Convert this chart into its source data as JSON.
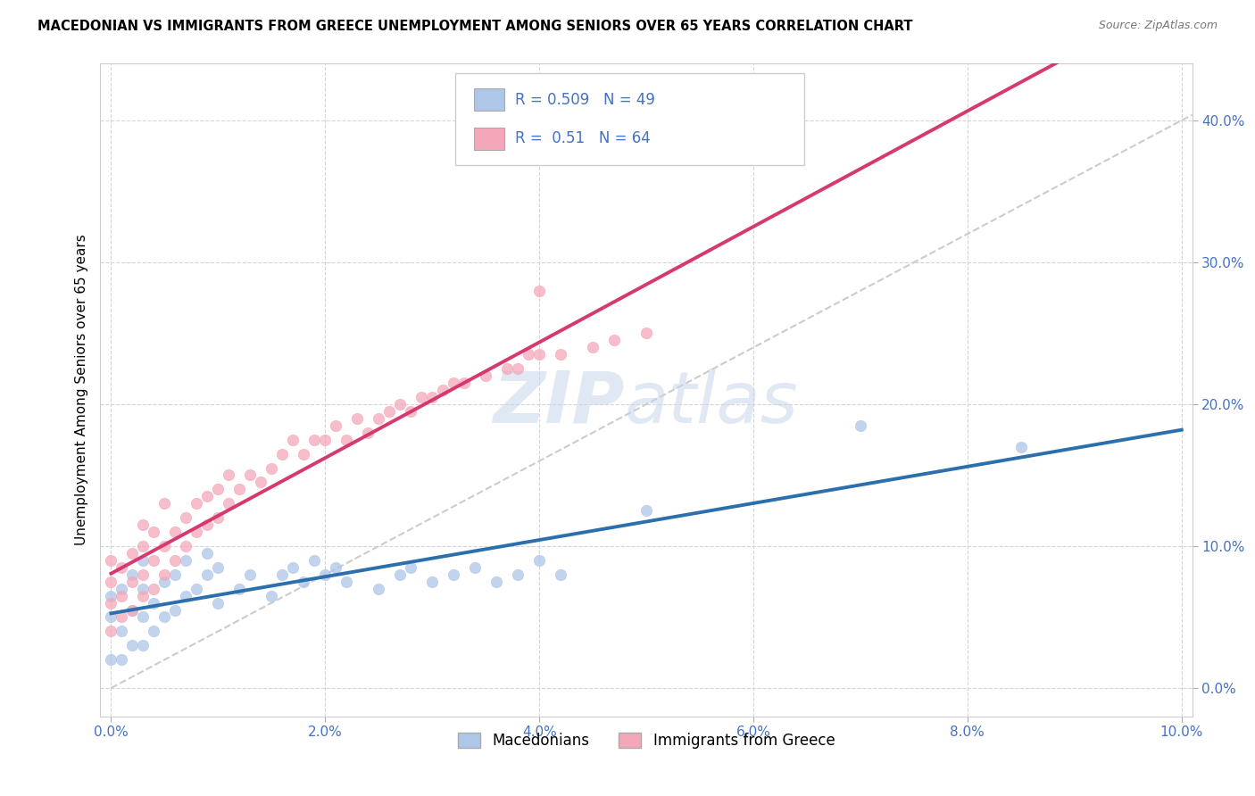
{
  "title": "MACEDONIAN VS IMMIGRANTS FROM GREECE UNEMPLOYMENT AMONG SENIORS OVER 65 YEARS CORRELATION CHART",
  "source": "Source: ZipAtlas.com",
  "ylabel": "Unemployment Among Seniors over 65 years",
  "xlim": [
    -0.001,
    0.101
  ],
  "ylim": [
    -0.02,
    0.44
  ],
  "x_ticks": [
    0.0,
    0.02,
    0.04,
    0.06,
    0.08,
    0.1
  ],
  "y_ticks": [
    0.0,
    0.1,
    0.2,
    0.3,
    0.4
  ],
  "macedonian_R": 0.509,
  "macedonian_N": 49,
  "greece_R": 0.51,
  "greece_N": 64,
  "blue_dot_color": "#aec6e8",
  "pink_dot_color": "#f4a7b9",
  "blue_line_color": "#2c6fad",
  "pink_line_color": "#d63870",
  "ref_line_color": "#cccccc",
  "watermark_color": "#c8d6ea",
  "mac_x": [
    0.0,
    0.0,
    0.0,
    0.001,
    0.001,
    0.001,
    0.002,
    0.002,
    0.002,
    0.003,
    0.003,
    0.003,
    0.003,
    0.004,
    0.004,
    0.005,
    0.005,
    0.006,
    0.006,
    0.007,
    0.007,
    0.008,
    0.009,
    0.009,
    0.01,
    0.01,
    0.012,
    0.013,
    0.015,
    0.016,
    0.017,
    0.018,
    0.019,
    0.02,
    0.021,
    0.022,
    0.025,
    0.027,
    0.028,
    0.03,
    0.032,
    0.034,
    0.036,
    0.038,
    0.04,
    0.042,
    0.05,
    0.07,
    0.085
  ],
  "mac_y": [
    0.02,
    0.05,
    0.065,
    0.02,
    0.04,
    0.07,
    0.03,
    0.055,
    0.08,
    0.03,
    0.05,
    0.07,
    0.09,
    0.04,
    0.06,
    0.05,
    0.075,
    0.055,
    0.08,
    0.065,
    0.09,
    0.07,
    0.08,
    0.095,
    0.06,
    0.085,
    0.07,
    0.08,
    0.065,
    0.08,
    0.085,
    0.075,
    0.09,
    0.08,
    0.085,
    0.075,
    0.07,
    0.08,
    0.085,
    0.075,
    0.08,
    0.085,
    0.075,
    0.08,
    0.09,
    0.08,
    0.125,
    0.185,
    0.17
  ],
  "gr_x": [
    0.0,
    0.0,
    0.0,
    0.0,
    0.001,
    0.001,
    0.001,
    0.002,
    0.002,
    0.002,
    0.003,
    0.003,
    0.003,
    0.003,
    0.004,
    0.004,
    0.004,
    0.005,
    0.005,
    0.005,
    0.006,
    0.006,
    0.007,
    0.007,
    0.008,
    0.008,
    0.009,
    0.009,
    0.01,
    0.01,
    0.011,
    0.011,
    0.012,
    0.013,
    0.014,
    0.015,
    0.016,
    0.017,
    0.018,
    0.019,
    0.02,
    0.021,
    0.022,
    0.023,
    0.024,
    0.025,
    0.026,
    0.027,
    0.028,
    0.029,
    0.03,
    0.031,
    0.032,
    0.033,
    0.035,
    0.037,
    0.038,
    0.039,
    0.04,
    0.042,
    0.045,
    0.047,
    0.05,
    0.04
  ],
  "gr_y": [
    0.04,
    0.06,
    0.075,
    0.09,
    0.05,
    0.065,
    0.085,
    0.055,
    0.075,
    0.095,
    0.065,
    0.08,
    0.1,
    0.115,
    0.07,
    0.09,
    0.11,
    0.08,
    0.1,
    0.13,
    0.09,
    0.11,
    0.1,
    0.12,
    0.11,
    0.13,
    0.115,
    0.135,
    0.12,
    0.14,
    0.13,
    0.15,
    0.14,
    0.15,
    0.145,
    0.155,
    0.165,
    0.175,
    0.165,
    0.175,
    0.175,
    0.185,
    0.175,
    0.19,
    0.18,
    0.19,
    0.195,
    0.2,
    0.195,
    0.205,
    0.205,
    0.21,
    0.215,
    0.215,
    0.22,
    0.225,
    0.225,
    0.235,
    0.28,
    0.235,
    0.24,
    0.245,
    0.25,
    0.235
  ]
}
